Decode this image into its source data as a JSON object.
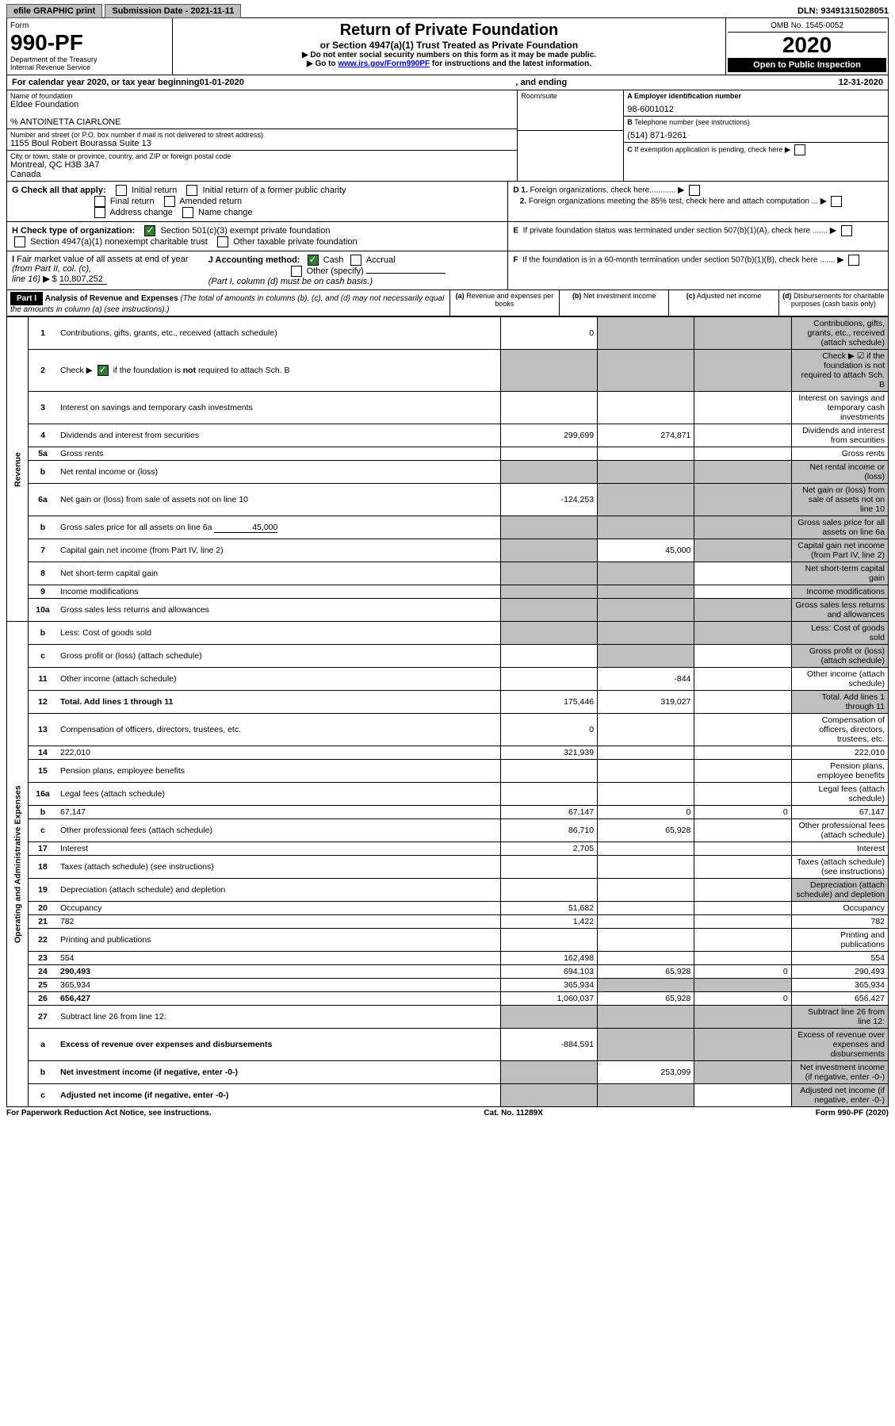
{
  "top": {
    "efile": "efile GRAPHIC print",
    "submission": "Submission Date - 2021-11-11",
    "dln": "DLN: 93491315028051"
  },
  "header": {
    "form_label": "Form",
    "form_number": "990-PF",
    "dept1": "Department of the Treasury",
    "dept2": "Internal Revenue Service",
    "title": "Return of Private Foundation",
    "subtitle": "or Section 4947(a)(1) Trust Treated as Private Foundation",
    "instr1": "▶ Do not enter social security numbers on this form as it may be made public.",
    "instr2a": "▶ Go to ",
    "instr2_link": "www.irs.gov/Form990PF",
    "instr2b": " for instructions and the latest information.",
    "omb": "OMB No. 1545-0052",
    "year": "2020",
    "open": "Open to Public Inspection"
  },
  "cal": {
    "prefix": "For calendar year 2020, or tax year beginning ",
    "begin": "01-01-2020",
    "mid": " , and ending ",
    "end": "12-31-2020"
  },
  "info": {
    "name_label": "Name of foundation",
    "name": "Eldee Foundation",
    "care_of": "% ANTOINETTA CIARLONE",
    "addr_label": "Number and street (or P.O. box number if mail is not delivered to street address)",
    "addr": "1155 Boul Robert Bourassa Suite 13",
    "room_label": "Room/suite",
    "city_label": "City or town, state or province, country, and ZIP or foreign postal code",
    "city": "Montreal, QC  H3B 3A7",
    "country": "Canada",
    "a_label": "A Employer identification number",
    "a_val": "98-6001012",
    "b_label": "B Telephone number (see instructions)",
    "b_val": "(514) 871-9261",
    "c_label": "C If exemption application is pending, check here"
  },
  "checks": {
    "g": "G Check all that apply:",
    "g_opts": [
      "Initial return",
      "Initial return of a former public charity",
      "Final return",
      "Amended return",
      "Address change",
      "Name change"
    ],
    "h": "H Check type of organization:",
    "h1": "Section 501(c)(3) exempt private foundation",
    "h2": "Section 4947(a)(1) nonexempt charitable trust",
    "h3": "Other taxable private foundation",
    "i1": "I Fair market value of all assets at end of year (from Part II, col. (c),",
    "i2": "line 16) ▶ $ ",
    "i_val": "10,807,252",
    "j": "J Accounting method:",
    "j1": "Cash",
    "j2": "Accrual",
    "j3": "Other (specify)",
    "j_note": "(Part I, column (d) must be on cash basis.)",
    "d1": "D 1. Foreign organizations, check here",
    "d2": "2. Foreign organizations meeting the 85% test, check here and attach computation",
    "e": "E  If private foundation status was terminated under section 507(b)(1)(A), check here",
    "f": "F  If the foundation is in a 60-month termination under section 507(b)(1)(B), check here"
  },
  "part1": {
    "label": "Part I",
    "title": "Analysis of Revenue and Expenses",
    "title_note": " (The total of amounts in columns (b), (c), and (d) may not necessarily equal the amounts in column (a) (see instructions).)",
    "col_a": "(a) Revenue and expenses per books",
    "col_b": "(b) Net investment income",
    "col_c": "(c) Adjusted net income",
    "col_d": "(d) Disbursements for charitable purposes (cash basis only)"
  },
  "sides": {
    "revenue": "Revenue",
    "expenses": "Operating and Administrative Expenses"
  },
  "lines": [
    {
      "n": "1",
      "d": "Contributions, gifts, grants, etc., received (attach schedule)",
      "a": "0",
      "b_grey": true,
      "c_grey": true,
      "d_grey": true
    },
    {
      "n": "2",
      "d": "Check ▶ ☑ if the foundation is not required to attach Sch. B",
      "all_grey": true,
      "bold_not": true
    },
    {
      "n": "3",
      "d": "Interest on savings and temporary cash investments"
    },
    {
      "n": "4",
      "d": "Dividends and interest from securities",
      "a": "299,699",
      "b": "274,871"
    },
    {
      "n": "5a",
      "d": "Gross rents"
    },
    {
      "n": "b",
      "d": "Net rental income or (loss)",
      "inset": true,
      "all_grey": true
    },
    {
      "n": "6a",
      "d": "Net gain or (loss) from sale of assets not on line 10",
      "a": "-124,253",
      "b_grey": true,
      "c_grey": true,
      "d_grey": true
    },
    {
      "n": "b",
      "d": "Gross sales price for all assets on line 6a",
      "inset": true,
      "inline_val": "45,000",
      "all_grey": true
    },
    {
      "n": "7",
      "d": "Capital gain net income (from Part IV, line 2)",
      "a_grey": true,
      "b": "45,000",
      "c_grey": true,
      "d_grey": true
    },
    {
      "n": "8",
      "d": "Net short-term capital gain",
      "a_grey": true,
      "b_grey": true,
      "d_grey": true
    },
    {
      "n": "9",
      "d": "Income modifications",
      "a_grey": true,
      "b_grey": true,
      "d_grey": true
    },
    {
      "n": "10a",
      "d": "Gross sales less returns and allowances",
      "inset": true,
      "all_grey": true
    },
    {
      "n": "b",
      "d": "Less: Cost of goods sold",
      "inset": true,
      "all_grey": true
    },
    {
      "n": "c",
      "d": "Gross profit or (loss) (attach schedule)",
      "b_grey": true,
      "d_grey": true
    },
    {
      "n": "11",
      "d": "Other income (attach schedule)",
      "b": "-844"
    },
    {
      "n": "12",
      "d": "Total. Add lines 1 through 11",
      "bold": true,
      "a": "175,446",
      "b": "319,027",
      "d_grey": true
    },
    {
      "n": "13",
      "d": "Compensation of officers, directors, trustees, etc.",
      "a": "0"
    },
    {
      "n": "14",
      "d": "222,010",
      "a": "321,939"
    },
    {
      "n": "15",
      "d": "Pension plans, employee benefits"
    },
    {
      "n": "16a",
      "d": "Legal fees (attach schedule)"
    },
    {
      "n": "b",
      "d": "67,147",
      "a": "67,147",
      "b": "0",
      "c": "0"
    },
    {
      "n": "c",
      "d": "Other professional fees (attach schedule)",
      "a": "86,710",
      "b": "65,928"
    },
    {
      "n": "17",
      "d": "Interest",
      "a": "2,705"
    },
    {
      "n": "18",
      "d": "Taxes (attach schedule) (see instructions)"
    },
    {
      "n": "19",
      "d": "Depreciation (attach schedule) and depletion",
      "d_grey": true
    },
    {
      "n": "20",
      "d": "Occupancy",
      "a": "51,682"
    },
    {
      "n": "21",
      "d": "782",
      "a": "1,422"
    },
    {
      "n": "22",
      "d": "Printing and publications"
    },
    {
      "n": "23",
      "d": "554",
      "a": "162,498"
    },
    {
      "n": "24",
      "d": "290,493",
      "bold": true,
      "a": "694,103",
      "b": "65,928",
      "c": "0"
    },
    {
      "n": "25",
      "d": "365,934",
      "a": "365,934",
      "b_grey": true,
      "c_grey": true
    },
    {
      "n": "26",
      "d": "656,427",
      "bold": true,
      "a": "1,060,037",
      "b": "65,928",
      "c": "0"
    },
    {
      "n": "27",
      "d": "Subtract line 26 from line 12:",
      "a_grey": true,
      "b_grey": true,
      "c_grey": true,
      "d_grey": true
    },
    {
      "n": "a",
      "d": "Excess of revenue over expenses and disbursements",
      "bold": true,
      "a": "-884,591",
      "b_grey": true,
      "c_grey": true,
      "d_grey": true
    },
    {
      "n": "b",
      "d": "Net investment income (if negative, enter -0-)",
      "bold": true,
      "a_grey": true,
      "b": "253,099",
      "c_grey": true,
      "d_grey": true
    },
    {
      "n": "c",
      "d": "Adjusted net income (if negative, enter -0-)",
      "bold": true,
      "a_grey": true,
      "b_grey": true,
      "d_grey": true
    }
  ],
  "footer": {
    "left": "For Paperwork Reduction Act Notice, see instructions.",
    "mid": "Cat. No. 11289X",
    "right": "Form 990-PF (2020)"
  }
}
